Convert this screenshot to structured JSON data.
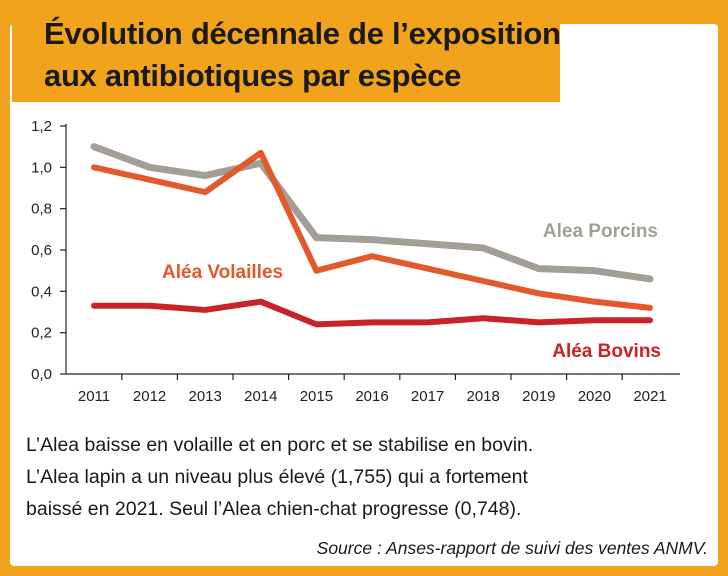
{
  "title": {
    "line1": "Évolution décennale de l’exposition",
    "line2": "aux antibiotiques par espèce"
  },
  "caption": {
    "line1": "L’Alea baisse en volaille et en porc et se stabilise en bovin.",
    "line2": "L’Alea lapin a un niveau plus élevé (1,755) qui a fortement",
    "line3": "baissé en 2021. Seul l’Alea chien-chat progresse (0,748)."
  },
  "source": "Source : Anses-rapport de suivi des ventes ANMV.",
  "colors": {
    "background": "#f2a31c",
    "porcins": "#a39e96",
    "volailles": "#e2592b",
    "bovins": "#c92229"
  },
  "chart_data": {
    "type": "line",
    "title": "Évolution décennale de l’exposition aux antibiotiques par espèce",
    "xlabel": "",
    "ylabel": "",
    "categories": [
      "2011",
      "2012",
      "2013",
      "2014",
      "2015",
      "2016",
      "2017",
      "2018",
      "2019",
      "2020",
      "2021"
    ],
    "ylim": [
      0,
      1.2
    ],
    "yticks": [
      "0,0",
      "0,2",
      "0,4",
      "0,6",
      "0,8",
      "1,0",
      "1,2"
    ],
    "grid": false,
    "series": [
      {
        "name": "Alea Porcins",
        "color_key": "porcins",
        "values": [
          1.1,
          1.0,
          0.96,
          1.02,
          0.66,
          0.65,
          0.63,
          0.61,
          0.51,
          0.5,
          0.46
        ]
      },
      {
        "name": "Aléa Volailles",
        "color_key": "volailles",
        "values": [
          1.0,
          0.94,
          0.88,
          1.07,
          0.5,
          0.57,
          0.51,
          0.45,
          0.39,
          0.35,
          0.32
        ]
      },
      {
        "name": "Aléa Bovins",
        "color_key": "bovins",
        "values": [
          0.33,
          0.33,
          0.31,
          0.35,
          0.24,
          0.25,
          0.25,
          0.27,
          0.25,
          0.26,
          0.26
        ]
      }
    ]
  }
}
